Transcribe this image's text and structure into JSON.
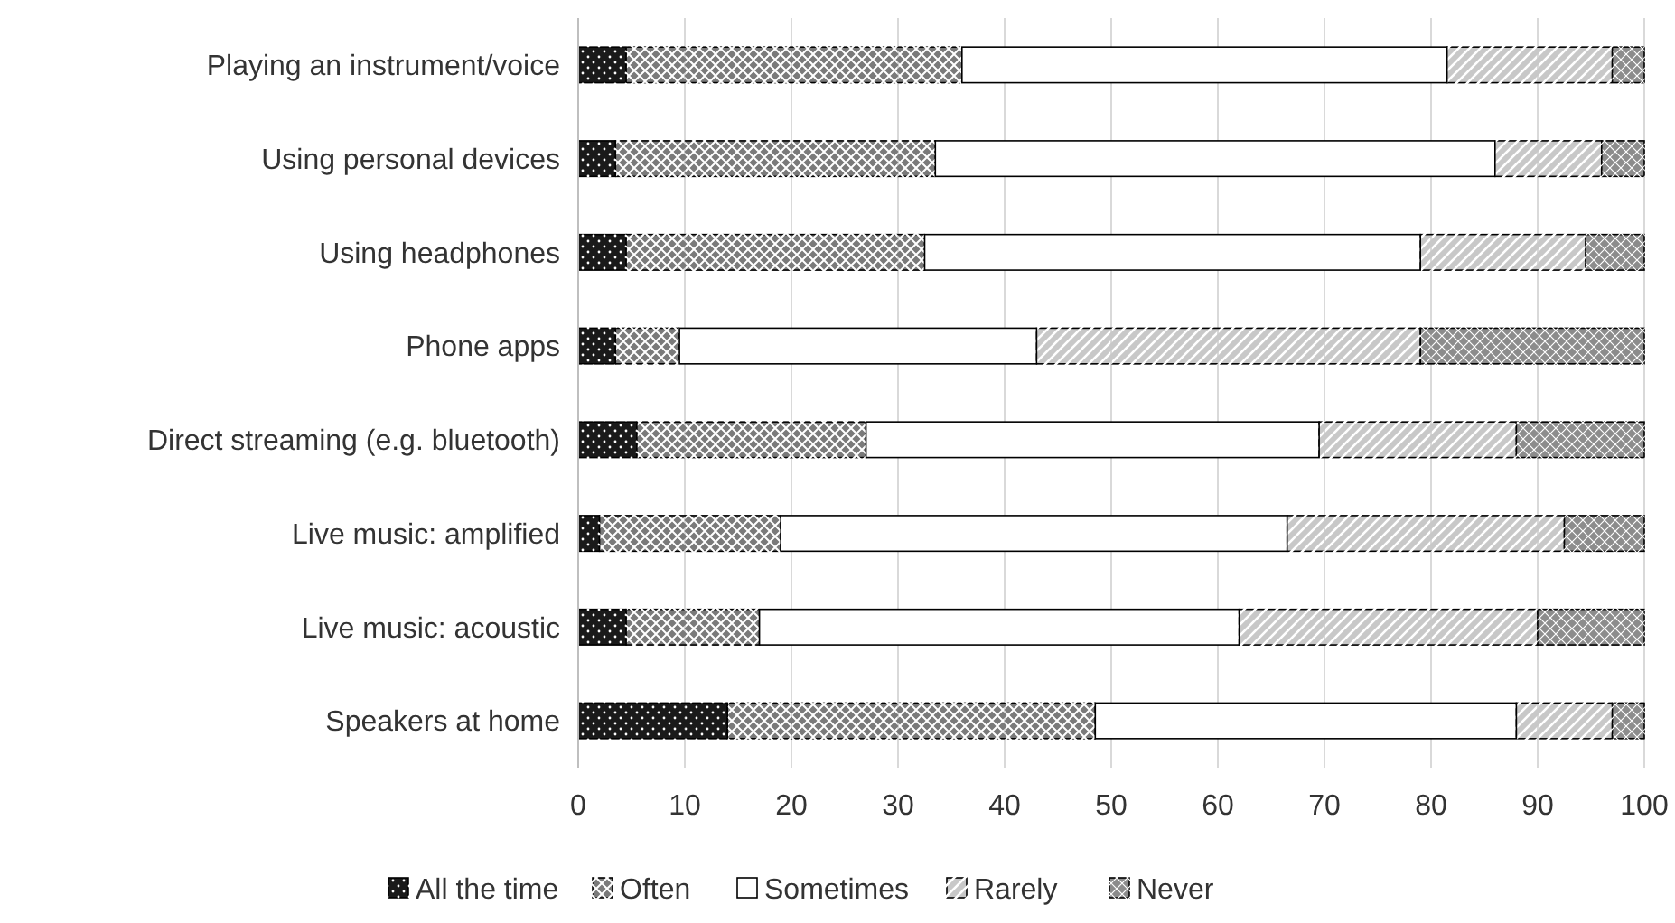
{
  "chart_data": {
    "type": "bar",
    "orientation": "horizontal",
    "stacked": true,
    "categories": [
      "Playing an instrument/voice",
      "Using personal devices",
      "Using headphones",
      "Phone apps",
      "Direct streaming (e.g. bluetooth)",
      "Live music: amplified",
      "Live music: acoustic",
      "Speakers at home"
    ],
    "series": [
      {
        "name": "All the time",
        "color": "#1a1a1a",
        "values": [
          4.5,
          3.5,
          4.5,
          3.5,
          5.5,
          2,
          4.5,
          14
        ]
      },
      {
        "name": "Often",
        "color": "#7a7a7a",
        "values": [
          31.5,
          30,
          28,
          6,
          21.5,
          17,
          12.5,
          34.5
        ]
      },
      {
        "name": "Sometimes",
        "color": "#ffffff",
        "values": [
          45.5,
          52.5,
          46.5,
          33.5,
          42.5,
          47.5,
          45,
          39.5
        ]
      },
      {
        "name": "Rarely",
        "color": "#c8c8c8",
        "values": [
          15.5,
          10,
          15.5,
          36,
          18.5,
          26,
          28,
          9
        ]
      },
      {
        "name": "Never",
        "color": "#8c8c8c",
        "values": [
          3,
          4,
          5.5,
          21,
          12,
          7.5,
          10,
          3
        ]
      }
    ],
    "xlim": [
      0,
      100
    ],
    "xticks": [
      0,
      10,
      20,
      30,
      40,
      50,
      60,
      70,
      80,
      90,
      100
    ],
    "grid": "x",
    "legend": "bottom"
  }
}
